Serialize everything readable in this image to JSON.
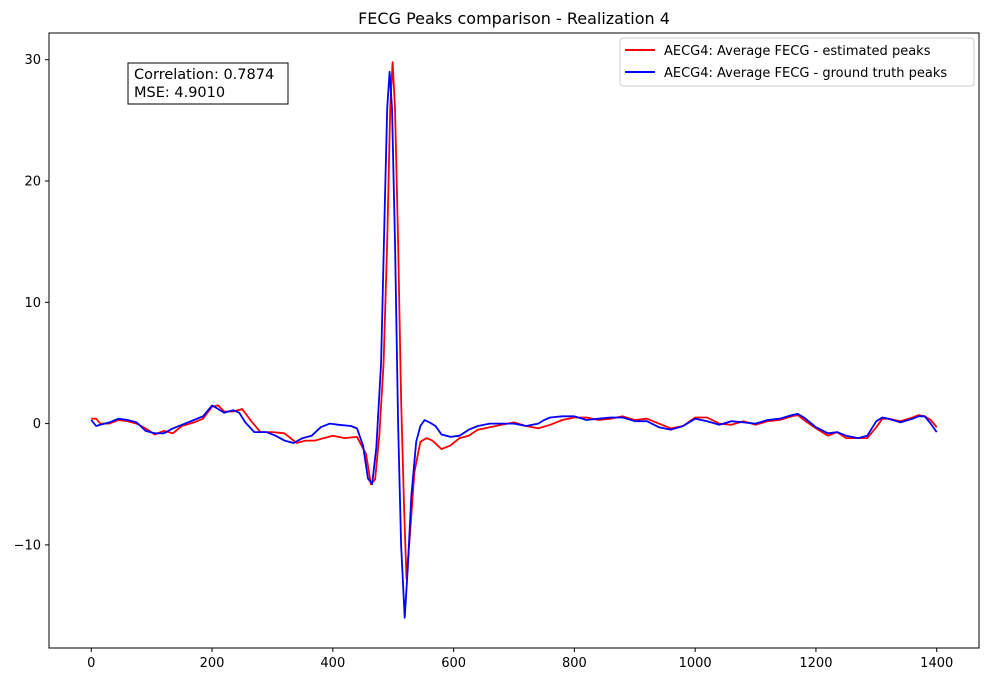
{
  "chart_data": {
    "type": "line",
    "title": "FECG Peaks comparison - Realization 4",
    "xlabel": "",
    "ylabel": "",
    "xlim": [
      -70,
      1470
    ],
    "ylim": [
      -18.5,
      32.2
    ],
    "xticks": [
      0,
      200,
      400,
      600,
      800,
      1000,
      1200,
      1400
    ],
    "yticks": [
      -10,
      0,
      10,
      20,
      30
    ],
    "grid": false,
    "legend_position": "top-right",
    "annotation": {
      "line1": "Correlation: 0.7874",
      "line2": "MSE: 4.9010"
    },
    "series": [
      {
        "name": "AECG4: Average FECG - estimated peaks",
        "color": "#ff0000",
        "points": [
          [
            0,
            0.4
          ],
          [
            8,
            0.4
          ],
          [
            15,
            0
          ],
          [
            30,
            0
          ],
          [
            45,
            0.3
          ],
          [
            60,
            0.2
          ],
          [
            75,
            0
          ],
          [
            90,
            -0.4
          ],
          [
            105,
            -0.9
          ],
          [
            120,
            -0.6
          ],
          [
            135,
            -0.8
          ],
          [
            150,
            -0.2
          ],
          [
            170,
            0.1
          ],
          [
            185,
            0.4
          ],
          [
            200,
            1.4
          ],
          [
            210,
            1.5
          ],
          [
            220,
            1.0
          ],
          [
            235,
            1.0
          ],
          [
            250,
            1.2
          ],
          [
            265,
            0.2
          ],
          [
            280,
            -0.7
          ],
          [
            300,
            -0.7
          ],
          [
            320,
            -0.8
          ],
          [
            340,
            -1.6
          ],
          [
            355,
            -1.4
          ],
          [
            370,
            -1.4
          ],
          [
            385,
            -1.2
          ],
          [
            400,
            -1.0
          ],
          [
            420,
            -1.2
          ],
          [
            440,
            -1.1
          ],
          [
            455,
            -2.5
          ],
          [
            463,
            -5.0
          ],
          [
            470,
            -4.6
          ],
          [
            477,
            -1.0
          ],
          [
            484,
            5.0
          ],
          [
            490,
            15.0
          ],
          [
            495,
            26.0
          ],
          [
            499,
            29.8
          ],
          [
            503,
            26.0
          ],
          [
            508,
            15.0
          ],
          [
            513,
            2.0
          ],
          [
            518,
            -7.0
          ],
          [
            522,
            -12.8
          ],
          [
            528,
            -9.0
          ],
          [
            535,
            -4.0
          ],
          [
            545,
            -1.5
          ],
          [
            555,
            -1.2
          ],
          [
            565,
            -1.4
          ],
          [
            580,
            -2.1
          ],
          [
            595,
            -1.8
          ],
          [
            610,
            -1.2
          ],
          [
            625,
            -1.0
          ],
          [
            640,
            -0.5
          ],
          [
            660,
            -0.3
          ],
          [
            680,
            -0.1
          ],
          [
            700,
            0.1
          ],
          [
            720,
            -0.2
          ],
          [
            740,
            -0.4
          ],
          [
            760,
            -0.1
          ],
          [
            780,
            0.3
          ],
          [
            800,
            0.5
          ],
          [
            820,
            0.5
          ],
          [
            840,
            0.3
          ],
          [
            860,
            0.4
          ],
          [
            880,
            0.6
          ],
          [
            900,
            0.3
          ],
          [
            920,
            0.4
          ],
          [
            940,
            0
          ],
          [
            960,
            -0.4
          ],
          [
            980,
            -0.2
          ],
          [
            1000,
            0.5
          ],
          [
            1020,
            0.5
          ],
          [
            1040,
            0
          ],
          [
            1060,
            -0.1
          ],
          [
            1080,
            0.2
          ],
          [
            1100,
            -0.1
          ],
          [
            1120,
            0.2
          ],
          [
            1140,
            0.3
          ],
          [
            1160,
            0.6
          ],
          [
            1170,
            0.7
          ],
          [
            1180,
            0.3
          ],
          [
            1200,
            -0.4
          ],
          [
            1220,
            -1.0
          ],
          [
            1235,
            -0.7
          ],
          [
            1250,
            -1.2
          ],
          [
            1270,
            -1.2
          ],
          [
            1285,
            -1.2
          ],
          [
            1300,
            -0.3
          ],
          [
            1310,
            0.4
          ],
          [
            1320,
            0.4
          ],
          [
            1340,
            0.2
          ],
          [
            1360,
            0.5
          ],
          [
            1370,
            0.7
          ],
          [
            1380,
            0.6
          ],
          [
            1390,
            0.3
          ],
          [
            1400,
            -0.3
          ]
        ]
      },
      {
        "name": "AECG4: Average FECG - ground truth peaks",
        "color": "#0000ff",
        "points": [
          [
            0,
            0.3
          ],
          [
            8,
            -0.2
          ],
          [
            15,
            -0.1
          ],
          [
            30,
            0.1
          ],
          [
            45,
            0.4
          ],
          [
            60,
            0.3
          ],
          [
            75,
            0.1
          ],
          [
            90,
            -0.6
          ],
          [
            105,
            -0.8
          ],
          [
            120,
            -0.8
          ],
          [
            135,
            -0.4
          ],
          [
            150,
            -0.1
          ],
          [
            170,
            0.3
          ],
          [
            185,
            0.6
          ],
          [
            200,
            1.5
          ],
          [
            210,
            1.2
          ],
          [
            220,
            0.9
          ],
          [
            235,
            1.1
          ],
          [
            245,
            0.9
          ],
          [
            255,
            0.1
          ],
          [
            270,
            -0.7
          ],
          [
            290,
            -0.7
          ],
          [
            305,
            -1.0
          ],
          [
            320,
            -1.4
          ],
          [
            335,
            -1.6
          ],
          [
            350,
            -1.2
          ],
          [
            365,
            -1.0
          ],
          [
            380,
            -0.3
          ],
          [
            395,
            0
          ],
          [
            410,
            -0.1
          ],
          [
            430,
            -0.2
          ],
          [
            440,
            -0.4
          ],
          [
            450,
            -1.8
          ],
          [
            458,
            -4.5
          ],
          [
            465,
            -5.0
          ],
          [
            472,
            -2.0
          ],
          [
            480,
            5.0
          ],
          [
            486,
            18.0
          ],
          [
            490,
            26.0
          ],
          [
            494,
            29.0
          ],
          [
            498,
            26.0
          ],
          [
            503,
            15.0
          ],
          [
            508,
            0
          ],
          [
            513,
            -10.0
          ],
          [
            519,
            -16.0
          ],
          [
            524,
            -12.0
          ],
          [
            530,
            -6.0
          ],
          [
            538,
            -1.5
          ],
          [
            545,
            -0.2
          ],
          [
            552,
            0.3
          ],
          [
            560,
            0.1
          ],
          [
            570,
            -0.2
          ],
          [
            580,
            -0.9
          ],
          [
            595,
            -1.1
          ],
          [
            610,
            -1.0
          ],
          [
            625,
            -0.5
          ],
          [
            640,
            -0.2
          ],
          [
            660,
            0
          ],
          [
            680,
            0
          ],
          [
            700,
            0
          ],
          [
            720,
            -0.2
          ],
          [
            740,
            0
          ],
          [
            750,
            0.3
          ],
          [
            760,
            0.5
          ],
          [
            780,
            0.6
          ],
          [
            800,
            0.6
          ],
          [
            820,
            0.3
          ],
          [
            840,
            0.4
          ],
          [
            860,
            0.5
          ],
          [
            880,
            0.5
          ],
          [
            900,
            0.2
          ],
          [
            920,
            0.2
          ],
          [
            940,
            -0.3
          ],
          [
            960,
            -0.5
          ],
          [
            980,
            -0.2
          ],
          [
            1000,
            0.4
          ],
          [
            1020,
            0.2
          ],
          [
            1040,
            -0.1
          ],
          [
            1060,
            0.2
          ],
          [
            1080,
            0.1
          ],
          [
            1100,
            0
          ],
          [
            1120,
            0.3
          ],
          [
            1140,
            0.4
          ],
          [
            1160,
            0.7
          ],
          [
            1170,
            0.8
          ],
          [
            1180,
            0.5
          ],
          [
            1200,
            -0.3
          ],
          [
            1220,
            -0.8
          ],
          [
            1235,
            -0.7
          ],
          [
            1250,
            -1.0
          ],
          [
            1270,
            -1.2
          ],
          [
            1285,
            -1.0
          ],
          [
            1300,
            0.2
          ],
          [
            1310,
            0.5
          ],
          [
            1320,
            0.4
          ],
          [
            1340,
            0.1
          ],
          [
            1360,
            0.4
          ],
          [
            1370,
            0.6
          ],
          [
            1380,
            0.6
          ],
          [
            1390,
            0
          ],
          [
            1400,
            -0.7
          ]
        ]
      }
    ]
  }
}
